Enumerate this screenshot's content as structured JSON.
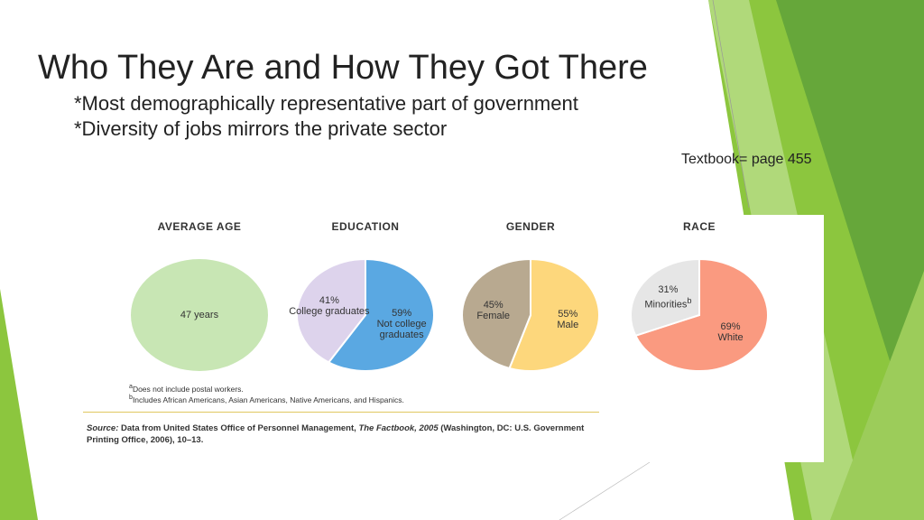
{
  "slide": {
    "title": "Who They Are and How They Got There",
    "bullets": [
      "*Most demographically representative part of government",
      "*Diversity of jobs mirrors the private sector"
    ],
    "reference": "Textbook= page 455"
  },
  "chart_data": [
    {
      "type": "pie",
      "title": "AVERAGE AGE",
      "categories": [
        null
      ],
      "values": [
        47
      ],
      "value_labels": [
        "47 years"
      ],
      "colors": [
        "#c8e6b4"
      ]
    },
    {
      "type": "pie",
      "title": "EDUCATION",
      "categories": [
        "College graduates",
        "Not college graduates"
      ],
      "values": [
        41,
        59
      ],
      "value_labels": [
        "41%",
        "59%"
      ],
      "colors": [
        "#ddd3ec",
        "#5aa8e2"
      ]
    },
    {
      "type": "pie",
      "title": "GENDER",
      "categories": [
        "Female",
        "Male"
      ],
      "values": [
        45,
        55
      ],
      "value_labels": [
        "45%",
        "55%"
      ],
      "colors": [
        "#b8a990",
        "#fdd77c"
      ]
    },
    {
      "type": "pie",
      "title": "RACE",
      "categories": [
        "Minorities",
        "White"
      ],
      "category_notes": [
        "b",
        null
      ],
      "values": [
        31,
        69
      ],
      "value_labels": [
        "31%",
        "69%"
      ],
      "colors": [
        "#e6e6e6",
        "#fa9a80"
      ]
    }
  ],
  "figure": {
    "footnotes": [
      {
        "mark": "a",
        "text": "Does not include postal workers."
      },
      {
        "mark": "b",
        "text": "Includes African Americans, Asian Americans, Native Americans, and Hispanics."
      }
    ],
    "source": {
      "label": "Source:",
      "parts": [
        "Data from United States Office of Personnel Management, ",
        "The Factbook, 2005",
        " (Washington, DC: U.S. Government Printing Office, 2006), 10–13."
      ]
    }
  }
}
